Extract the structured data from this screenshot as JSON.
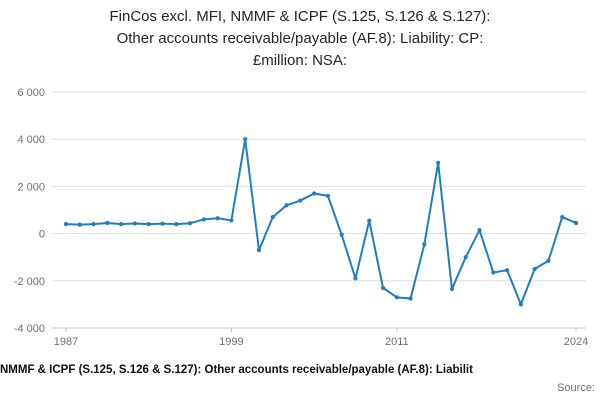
{
  "title": {
    "line1": "FinCos excl. MFI, NMMF & ICPF (S.125, S.126 & S.127):",
    "line2": "Other accounts receivable/payable (AF.8): Liability: CP:",
    "line3": "£million: NSA:"
  },
  "footer": {
    "series_title": "NMMF & ICPF (S.125, S.126 & S.127): Other accounts receivable/payable (AF.8): Liabilit",
    "source_label": "Source:"
  },
  "colors": {
    "line": "#1f7ec2",
    "grid": "#dedede",
    "axis": "#c0c0c0",
    "tick_text": "#707070",
    "title_text": "#262626"
  },
  "chart_data": {
    "type": "line",
    "title": "FinCos excl. MFI, NMMF & ICPF (S.125, S.126 & S.127): Other accounts receivable/payable (AF.8): Liability: CP: £million: NSA:",
    "xlabel": "",
    "ylabel": "",
    "ylim": [
      -4000,
      6000
    ],
    "grid": "horizontal",
    "legend": "none",
    "markers": true,
    "x": [
      1987,
      1988,
      1989,
      1990,
      1991,
      1992,
      1993,
      1994,
      1995,
      1996,
      1997,
      1998,
      1999,
      2000,
      2001,
      2002,
      2003,
      2004,
      2005,
      2006,
      2007,
      2008,
      2009,
      2010,
      2011,
      2012,
      2013,
      2014,
      2015,
      2016,
      2017,
      2018,
      2019,
      2020,
      2021,
      2022,
      2023,
      2024
    ],
    "values": [
      400,
      380,
      400,
      450,
      400,
      430,
      400,
      420,
      400,
      440,
      600,
      650,
      560,
      4000,
      -700,
      700,
      1200,
      1400,
      1700,
      1600,
      -50,
      -1900,
      550,
      -2300,
      -2700,
      -2750,
      -450,
      3000,
      -2350,
      -1000,
      150,
      -1650,
      -1550,
      -3000,
      -1500,
      -1150,
      700,
      450
    ],
    "y_ticks": [
      {
        "value": 6000,
        "label": "6 000"
      },
      {
        "value": 4000,
        "label": "4 000"
      },
      {
        "value": 2000,
        "label": "2 000"
      },
      {
        "value": 0,
        "label": "0"
      },
      {
        "value": -2000,
        "label": "-2 000"
      },
      {
        "value": -4000,
        "label": "-4 000"
      }
    ],
    "x_ticks": [
      {
        "value": 1987,
        "label": "1987"
      },
      {
        "value": 1999,
        "label": "1999"
      },
      {
        "value": 2011,
        "label": "2011"
      },
      {
        "value": 2024,
        "label": "2024"
      }
    ]
  }
}
